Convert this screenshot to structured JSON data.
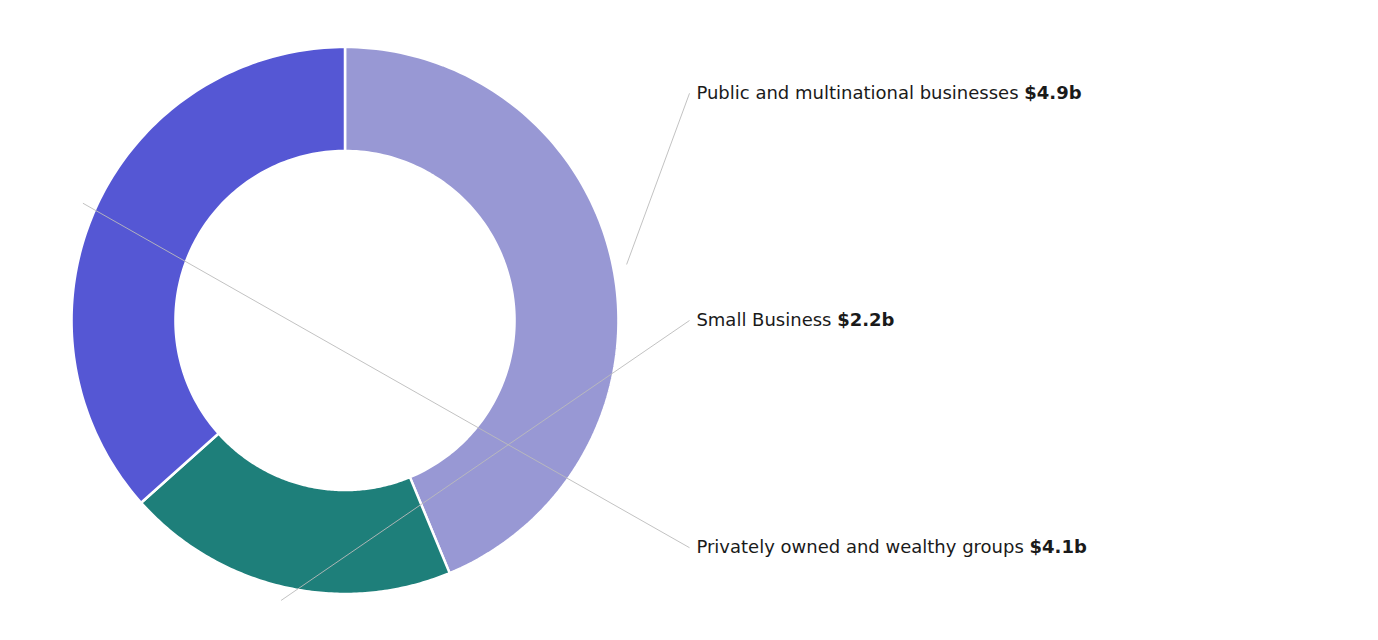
{
  "chart_data": {
    "type": "donut",
    "categories": [
      "Public and multinational businesses",
      "Small Business",
      "Privately owned and wealthy groups"
    ],
    "values": [
      4.9,
      2.2,
      4.1
    ],
    "value_labels": [
      "$4.9b",
      "$2.2b",
      "$4.1b"
    ],
    "colors": [
      "#9898d4",
      "#1e7f7a",
      "#5557d4"
    ],
    "data_labels": true
  }
}
